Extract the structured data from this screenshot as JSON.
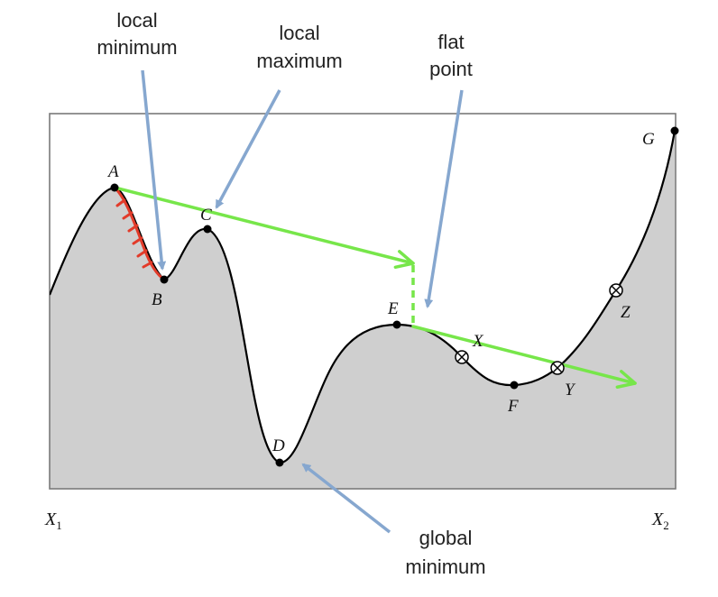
{
  "callouts": {
    "local_minimum": [
      "local",
      "minimum"
    ],
    "local_maximum": [
      "local",
      "maximum"
    ],
    "flat_point": [
      "flat",
      "point"
    ],
    "global_minimum": [
      "global",
      "minimum"
    ]
  },
  "points": {
    "A": "A",
    "B": "B",
    "C": "C",
    "D": "D",
    "E": "E",
    "F": "F",
    "G": "G",
    "X": "X",
    "Y": "Y",
    "Z": "Z"
  },
  "axis": {
    "x1": "X",
    "x1_sub": "1",
    "x2": "X",
    "x2_sub": "2"
  },
  "colors": {
    "fill": "#cfcfcf",
    "curve": "#000000",
    "descent": "#e23b2a",
    "step_arrow": "#77e64a",
    "callout_arrow": "#86a7cf"
  }
}
